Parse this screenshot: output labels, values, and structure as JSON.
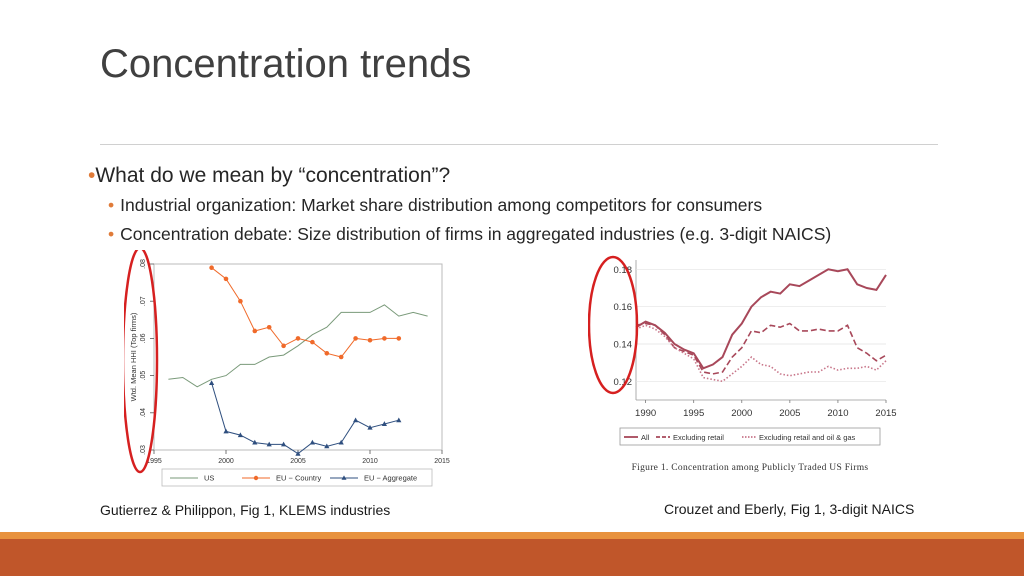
{
  "title": "Concentration trends",
  "bullets": {
    "main": "What do we mean by “concentration”?",
    "sub1": "Industrial organization:  Market share distribution among competitors for consumers",
    "sub2": "Concentration debate:  Size distribution of firms in aggregated industries (e.g. 3-digit NAICS)"
  },
  "captions": {
    "left": "Gutierrez & Philippon, Fig 1, KLEMS industries",
    "right": "Crouzet and Eberly, Fig 1, 3-digit NAICS",
    "figure": "Figure 1. Concentration among Publicly Traded US Firms"
  },
  "colors": {
    "accent": "#e07b39",
    "footer_orange": "#e8923e",
    "footer_rust": "#c0562a",
    "annotation_circle": "#d62020"
  },
  "chart_data": [
    {
      "type": "line",
      "ylabel": "Wtd. Mean HHI (Top firms)",
      "xlim": [
        1995,
        2015
      ],
      "ylim": [
        0.03,
        0.08
      ],
      "x_ticks": [
        "1995",
        "2000",
        "2005",
        "2010",
        "2015"
      ],
      "y_ticks": [
        ".03",
        ".04",
        ".05",
        ".06",
        ".07",
        ".08"
      ],
      "legend_position": "bottom",
      "series": [
        {
          "name": "US",
          "color": "#7a9a7a",
          "marker": "none",
          "x": [
            1996,
            1997,
            1998,
            1999,
            2000,
            2001,
            2002,
            2003,
            2004,
            2005,
            2006,
            2007,
            2008,
            2009,
            2010,
            2011,
            2012,
            2013,
            2014
          ],
          "y": [
            0.049,
            0.0495,
            0.047,
            0.049,
            0.05,
            0.053,
            0.053,
            0.055,
            0.0555,
            0.058,
            0.061,
            0.063,
            0.067,
            0.067,
            0.067,
            0.069,
            0.066,
            0.067,
            0.066
          ]
        },
        {
          "name": "EU − Country",
          "color": "#f06a2a",
          "marker": "circle",
          "x": [
            1999,
            2000,
            2001,
            2002,
            2003,
            2004,
            2005,
            2006,
            2007,
            2008,
            2009,
            2010,
            2011,
            2012
          ],
          "y": [
            0.079,
            0.076,
            0.07,
            0.062,
            0.063,
            0.058,
            0.06,
            0.059,
            0.056,
            0.055,
            0.06,
            0.0595,
            0.06,
            0.06
          ]
        },
        {
          "name": "EU − Aggregate",
          "color": "#2f4f7f",
          "marker": "triangle",
          "x": [
            1999,
            2000,
            2001,
            2002,
            2003,
            2004,
            2005,
            2006,
            2007,
            2008,
            2009,
            2010,
            2011,
            2012
          ],
          "y": [
            0.048,
            0.035,
            0.034,
            0.032,
            0.0315,
            0.0315,
            0.029,
            0.032,
            0.031,
            0.032,
            0.038,
            0.036,
            0.037,
            0.038
          ]
        }
      ]
    },
    {
      "type": "line",
      "xlim": [
        1989,
        2015
      ],
      "ylim": [
        0.11,
        0.185
      ],
      "x_ticks": [
        "1990",
        "1995",
        "2000",
        "2005",
        "2010",
        "2015"
      ],
      "y_ticks": [
        "0.12",
        "0.14",
        "0.16",
        "0.18"
      ],
      "legend_position": "bottom",
      "series": [
        {
          "name": "All",
          "color": "#a8485a",
          "style": "solid",
          "x": [
            1989,
            1990,
            1991,
            1992,
            1993,
            1994,
            1995,
            1996,
            1997,
            1998,
            1999,
            2000,
            2001,
            2002,
            2003,
            2004,
            2005,
            2006,
            2007,
            2008,
            2009,
            2010,
            2011,
            2012,
            2013,
            2014,
            2015
          ],
          "y": [
            0.149,
            0.152,
            0.15,
            0.146,
            0.14,
            0.137,
            0.135,
            0.127,
            0.129,
            0.133,
            0.145,
            0.151,
            0.16,
            0.165,
            0.168,
            0.167,
            0.172,
            0.171,
            0.174,
            0.177,
            0.18,
            0.179,
            0.18,
            0.172,
            0.17,
            0.169,
            0.177
          ]
        },
        {
          "name": "Excluding retail",
          "color": "#a8485a",
          "style": "dashed",
          "x": [
            1989,
            1990,
            1991,
            1992,
            1993,
            1994,
            1995,
            1996,
            1997,
            1998,
            1999,
            2000,
            2001,
            2002,
            2003,
            2004,
            2005,
            2006,
            2007,
            2008,
            2009,
            2010,
            2011,
            2012,
            2013,
            2014,
            2015
          ],
          "y": [
            0.15,
            0.151,
            0.15,
            0.145,
            0.138,
            0.136,
            0.134,
            0.125,
            0.124,
            0.125,
            0.133,
            0.138,
            0.147,
            0.146,
            0.15,
            0.149,
            0.151,
            0.147,
            0.147,
            0.148,
            0.147,
            0.147,
            0.15,
            0.138,
            0.135,
            0.131,
            0.134
          ]
        },
        {
          "name": "Excluding retail and oil & gas",
          "color": "#c8768a",
          "style": "dotted",
          "x": [
            1989,
            1990,
            1991,
            1992,
            1993,
            1994,
            1995,
            1996,
            1997,
            1998,
            1999,
            2000,
            2001,
            2002,
            2003,
            2004,
            2005,
            2006,
            2007,
            2008,
            2009,
            2010,
            2011,
            2012,
            2013,
            2014,
            2015
          ],
          "y": [
            0.148,
            0.15,
            0.148,
            0.144,
            0.138,
            0.135,
            0.132,
            0.122,
            0.121,
            0.12,
            0.124,
            0.128,
            0.133,
            0.129,
            0.128,
            0.124,
            0.123,
            0.124,
            0.125,
            0.125,
            0.128,
            0.126,
            0.127,
            0.127,
            0.128,
            0.126,
            0.131
          ]
        }
      ]
    }
  ]
}
